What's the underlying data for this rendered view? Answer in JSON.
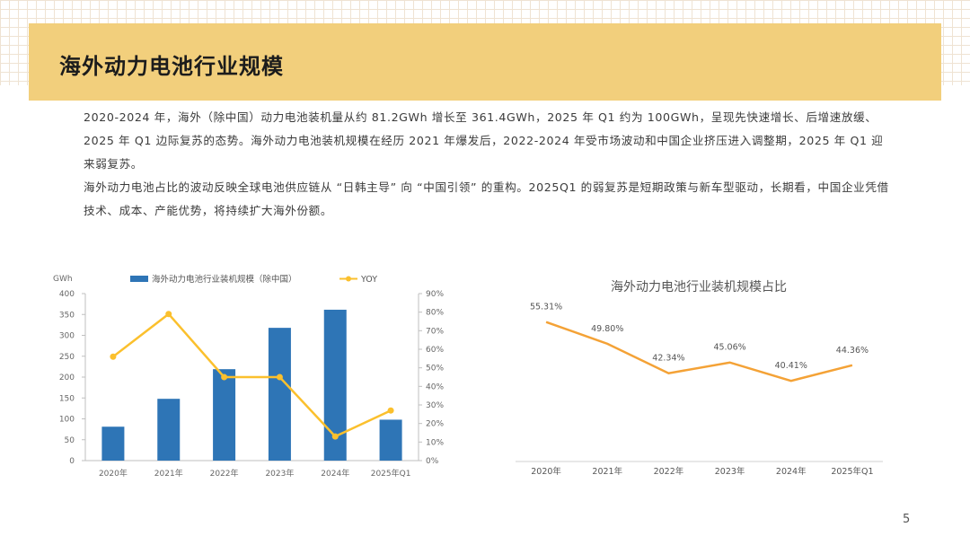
{
  "header": {
    "title": "海外动力电池行业规模"
  },
  "intro": {
    "paragraph_1": "2020-2024 年，海外（除中国）动力电池装机量从约 81.2GWh 增长至 361.4GWh，2025 年 Q1 约为 100GWh，呈现先快速增长、后增速放缓、2025 年 Q1 边际复苏的态势。海外动力电池装机规模在经历 2021 年爆发后，2022-2024 年受市场波动和中国企业挤压进入调整期，2025 年 Q1 迎来弱复苏。",
    "paragraph_2": "海外动力电池占比的波动反映全球电池供应链从 “日韩主导” 向 “中国引领” 的重构。2025Q1 的弱复苏是短期政策与新车型驱动，长期看，中国企业凭借技术、成本、产能优势，将持续扩大海外份额。"
  },
  "chart_data": [
    {
      "type": "bar",
      "title": "",
      "y_unit_label": "GWh",
      "categories": [
        "2020年",
        "2021年",
        "2022年",
        "2023年",
        "2024年",
        "2025年Q1"
      ],
      "series": [
        {
          "name": "海外动力电池行业装机规模（除中国）",
          "type": "bar",
          "axis": "left",
          "values": [
            81.2,
            148,
            219,
            318,
            361.4,
            98
          ]
        },
        {
          "name": "YOY",
          "type": "line",
          "axis": "right",
          "values": [
            0.56,
            0.79,
            0.45,
            0.45,
            0.13,
            0.27
          ]
        }
      ],
      "left_axis": {
        "ylim": [
          0,
          400
        ],
        "ticks": [
          "0",
          "50",
          "100",
          "150",
          "200",
          "250",
          "300",
          "350",
          "400"
        ]
      },
      "right_axis": {
        "ylim": [
          0,
          0.9
        ],
        "ticks": [
          "0%",
          "10%",
          "20%",
          "30%",
          "40%",
          "50%",
          "60%",
          "70%",
          "80%",
          "90%"
        ]
      },
      "colors": {
        "bar": "#2e75b6",
        "line": "#fbc02d"
      },
      "legend": "top-center",
      "grid": false
    },
    {
      "type": "line",
      "title": "海外动力电池行业装机规模占比",
      "categories": [
        "2020年",
        "2021年",
        "2022年",
        "2023年",
        "2024年",
        "2025年Q1"
      ],
      "values": [
        55.31,
        49.8,
        42.34,
        45.06,
        40.41,
        44.36
      ],
      "data_labels": [
        "55.31%",
        "49.80%",
        "42.34%",
        "45.06%",
        "40.41%",
        "44.36%"
      ],
      "ylim": [
        20,
        60
      ],
      "colors": {
        "line": "#f4a236"
      },
      "grid": false
    }
  ],
  "page": {
    "number": "5"
  }
}
